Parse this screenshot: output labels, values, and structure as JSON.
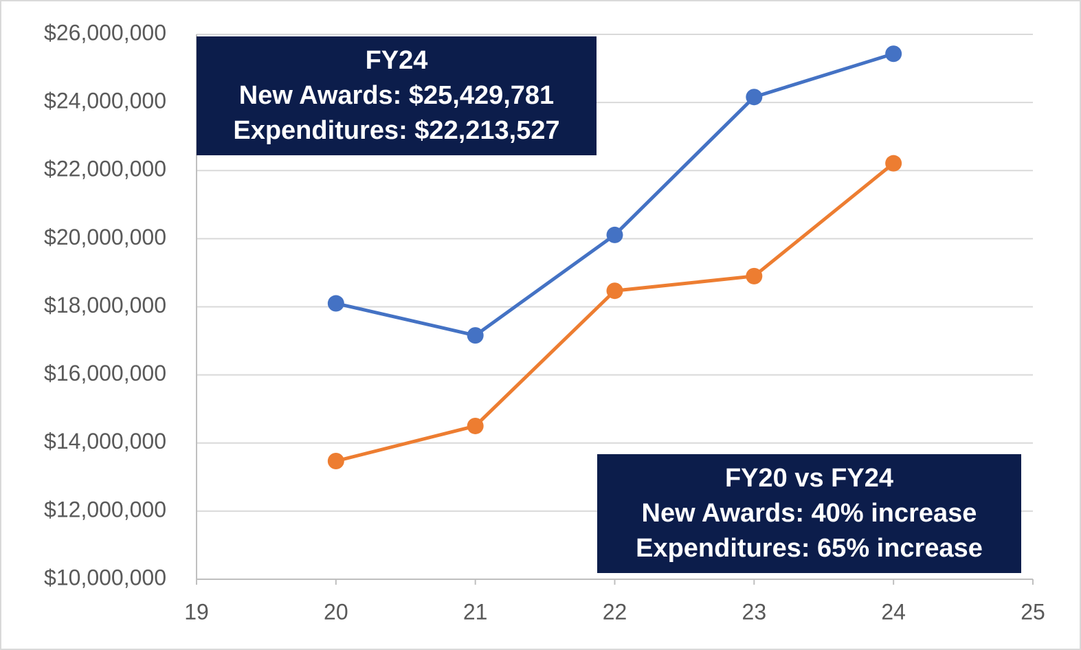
{
  "chart_data": {
    "type": "line",
    "x": [
      20,
      21,
      22,
      23,
      24
    ],
    "series": [
      {
        "color": "#4472c4",
        "values": [
          18100000,
          17160000,
          20110000,
          24160000,
          25429781
        ]
      },
      {
        "color": "#ed7d31",
        "values": [
          13470000,
          14500000,
          18470000,
          18900000,
          22213527
        ]
      }
    ],
    "xlim": [
      19,
      25
    ],
    "xticks": [
      19,
      20,
      21,
      22,
      23,
      24,
      25
    ],
    "ylim": [
      10000000,
      26000000
    ],
    "yticks": [
      {
        "value": 10000000,
        "label": "$10,000,000"
      },
      {
        "value": 12000000,
        "label": "$12,000,000"
      },
      {
        "value": 14000000,
        "label": "$14,000,000"
      },
      {
        "value": 16000000,
        "label": "$16,000,000"
      },
      {
        "value": 18000000,
        "label": "$18,000,000"
      },
      {
        "value": 20000000,
        "label": "$20,000,000"
      },
      {
        "value": 22000000,
        "label": "$22,000,000"
      },
      {
        "value": 24000000,
        "label": "$24,000,000"
      },
      {
        "value": 26000000,
        "label": "$26,000,000"
      }
    ],
    "grid": true,
    "annotations": [
      {
        "lines": [
          "FY24",
          "New Awards: $25,429,781",
          "Expenditures: $22,213,527"
        ]
      },
      {
        "lines": [
          "FY20 vs FY24",
          "New Awards: 40% increase",
          "Expenditures: 65% increase"
        ]
      }
    ]
  }
}
